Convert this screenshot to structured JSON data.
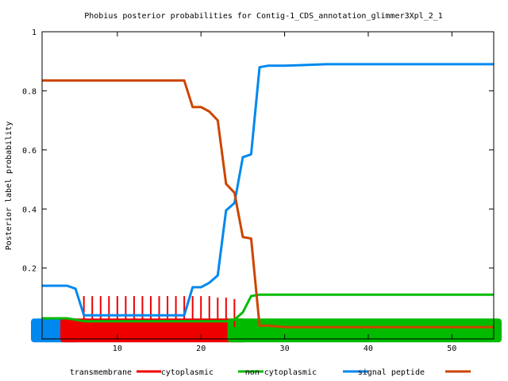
{
  "chart_data": {
    "type": "line",
    "title": "Phobius posterior probabilities for Contig-1_CDS_annotation_glimmer3Xpl_2_1",
    "xlabel": "",
    "ylabel": "Posterior label probability",
    "xlim": [
      1,
      55
    ],
    "ylim": [
      -0.04,
      1
    ],
    "x_ticks": [
      10,
      20,
      30,
      40,
      50
    ],
    "y_ticks": [
      0.2,
      0.4,
      0.6,
      0.8,
      1
    ],
    "y_tick_labels": [
      "0.2",
      "0.4",
      "0.6",
      "0.8",
      "1"
    ],
    "legend_position": "bottom",
    "series": [
      {
        "name": "transmembrane",
        "color": "#ee0000",
        "style": "impulses",
        "x": [
          6,
          7,
          8,
          9,
          10,
          11,
          12,
          13,
          14,
          15,
          16,
          17,
          18,
          19,
          20,
          21,
          22,
          23,
          24
        ],
        "values": [
          0.105,
          0.105,
          0.105,
          0.105,
          0.105,
          0.105,
          0.105,
          0.105,
          0.105,
          0.105,
          0.105,
          0.105,
          0.105,
          0.105,
          0.105,
          0.105,
          0.1,
          0.1,
          0.095
        ]
      },
      {
        "name": "cytoplasmic",
        "color": "#00bb00",
        "x": [
          1,
          2,
          3,
          4,
          5,
          6,
          8,
          10,
          12,
          14,
          16,
          18,
          20,
          22,
          23,
          24,
          25,
          26,
          27,
          28,
          30,
          35,
          40,
          45,
          50,
          55
        ],
        "values": [
          0.03,
          0.03,
          0.03,
          0.03,
          0.025,
          0.02,
          0.02,
          0.02,
          0.02,
          0.02,
          0.02,
          0.02,
          0.02,
          0.02,
          0.02,
          0.025,
          0.05,
          0.105,
          0.11,
          0.11,
          0.11,
          0.11,
          0.11,
          0.11,
          0.11,
          0.11
        ]
      },
      {
        "name": "non cytoplasmic",
        "color": "#0088ee",
        "x": [
          1,
          2,
          3,
          4,
          5,
          6,
          8,
          10,
          12,
          14,
          16,
          17,
          18,
          19,
          20,
          21,
          22,
          23,
          24,
          25,
          26,
          27,
          28,
          30,
          35,
          40,
          45,
          50,
          55
        ],
        "values": [
          0.14,
          0.14,
          0.14,
          0.14,
          0.13,
          0.04,
          0.04,
          0.04,
          0.04,
          0.04,
          0.04,
          0.04,
          0.04,
          0.135,
          0.135,
          0.15,
          0.175,
          0.395,
          0.42,
          0.575,
          0.585,
          0.88,
          0.885,
          0.885,
          0.89,
          0.89,
          0.89,
          0.89,
          0.89
        ]
      },
      {
        "name": "signal peptide",
        "color": "#cc4400",
        "x": [
          1,
          2,
          4,
          6,
          8,
          10,
          12,
          14,
          16,
          17,
          18,
          19,
          20,
          21,
          22,
          23,
          24,
          25,
          26,
          27,
          28,
          30,
          35,
          40,
          45,
          50,
          55
        ],
        "values": [
          0.835,
          0.835,
          0.835,
          0.835,
          0.835,
          0.835,
          0.835,
          0.835,
          0.835,
          0.835,
          0.835,
          0.745,
          0.745,
          0.73,
          0.7,
          0.485,
          0.455,
          0.305,
          0.3,
          0.005,
          0.005,
          0.0,
          0.0,
          0.0,
          0.0,
          0.0,
          0.0
        ]
      }
    ],
    "topology_bars": [
      {
        "series": "non cytoplasmic",
        "color": "#0088ee",
        "start": 1,
        "end": 4.5
      },
      {
        "series": "transmembrane",
        "color": "#ee0000",
        "start": 4.5,
        "end": 24.5
      },
      {
        "series": "cytoplasmic",
        "color": "#00bb00",
        "start": 24.5,
        "end": 55
      }
    ]
  }
}
